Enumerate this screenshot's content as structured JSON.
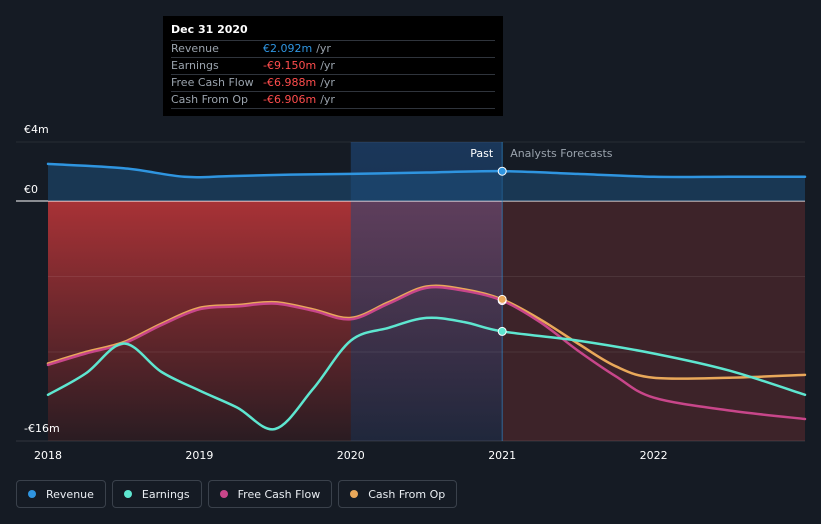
{
  "tooltip": {
    "date": "Dec 31 2020",
    "rows": [
      {
        "name": "Revenue",
        "value": "€2.092m",
        "unit": "/yr",
        "color": "#2f95e0"
      },
      {
        "name": "Earnings",
        "value": "-€9.150m",
        "unit": "/yr",
        "color": "#ff4d4d"
      },
      {
        "name": "Free Cash Flow",
        "value": "-€6.988m",
        "unit": "/yr",
        "color": "#ff4d4d"
      },
      {
        "name": "Cash From Op",
        "value": "-€6.906m",
        "unit": "/yr",
        "color": "#ff4d4d"
      }
    ]
  },
  "regions": {
    "past": "Past",
    "forecast": "Analysts Forecasts"
  },
  "legend": [
    {
      "label": "Revenue",
      "color": "#2f95e0"
    },
    {
      "label": "Earnings",
      "color": "#5ee6d0"
    },
    {
      "label": "Free Cash Flow",
      "color": "#c8468a"
    },
    {
      "label": "Cash From Op",
      "color": "#e9a85a"
    }
  ],
  "chart_data": {
    "type": "line",
    "title": "",
    "xlabel": "",
    "ylabel": "",
    "y_tick_labels": [
      "€4m",
      "€0",
      "-€16m"
    ],
    "y_ticks": [
      4,
      0,
      -16
    ],
    "ylim": [
      -16,
      4
    ],
    "xlim": [
      2018,
      2023.0
    ],
    "x_ticks": [
      2018,
      2019,
      2020,
      2021,
      2022
    ],
    "x_tick_labels": [
      "2018",
      "2019",
      "2020",
      "2021",
      "2022"
    ],
    "past_end": 2021,
    "highlight_range": [
      2020,
      2021
    ],
    "series": [
      {
        "name": "Revenue",
        "color": "#2f95e0",
        "x": [
          2018,
          2018.5,
          2018.9,
          2019.2,
          2019.6,
          2020,
          2020.5,
          2021,
          2021.5,
          2022,
          2022.5,
          2023.0
        ],
        "y": [
          2.6,
          2.3,
          1.7,
          1.75,
          1.85,
          1.9,
          2.0,
          2.09,
          1.9,
          1.7,
          1.7,
          1.7
        ]
      },
      {
        "name": "Earnings",
        "color": "#5ee6d0",
        "x": [
          2018,
          2018.25,
          2018.5,
          2018.75,
          2019,
          2019.25,
          2019.5,
          2019.75,
          2020,
          2020.25,
          2020.5,
          2020.75,
          2021,
          2021.5,
          2022,
          2022.5,
          2023.0
        ],
        "y": [
          -13.6,
          -12.1,
          -10.0,
          -12.0,
          -13.3,
          -14.5,
          -16.0,
          -13.2,
          -9.8,
          -8.9,
          -8.2,
          -8.5,
          -9.15,
          -9.8,
          -10.7,
          -11.9,
          -13.6
        ]
      },
      {
        "name": "Free Cash Flow",
        "color": "#c8468a",
        "x": [
          2018,
          2018.25,
          2018.5,
          2018.75,
          2019,
          2019.25,
          2019.5,
          2019.75,
          2020,
          2020.25,
          2020.5,
          2020.75,
          2021,
          2021.25,
          2021.5,
          2021.75,
          2022,
          2022.5,
          2023.0
        ],
        "y": [
          -11.5,
          -10.7,
          -10.0,
          -8.7,
          -7.6,
          -7.4,
          -7.2,
          -7.7,
          -8.3,
          -7.2,
          -6.1,
          -6.3,
          -6.99,
          -8.5,
          -10.5,
          -12.3,
          -13.8,
          -14.7,
          -15.3
        ]
      },
      {
        "name": "Cash From Op",
        "color": "#e9a85a",
        "x": [
          2018,
          2018.25,
          2018.5,
          2018.75,
          2019,
          2019.25,
          2019.5,
          2019.75,
          2020,
          2020.25,
          2020.5,
          2020.75,
          2021,
          2021.25,
          2021.5,
          2021.75,
          2022,
          2022.5,
          2023.0
        ],
        "y": [
          -11.4,
          -10.6,
          -9.9,
          -8.6,
          -7.5,
          -7.3,
          -7.1,
          -7.6,
          -8.2,
          -7.1,
          -6.0,
          -6.2,
          -6.906,
          -8.3,
          -10.0,
          -11.6,
          -12.4,
          -12.4,
          -12.2
        ]
      }
    ]
  }
}
